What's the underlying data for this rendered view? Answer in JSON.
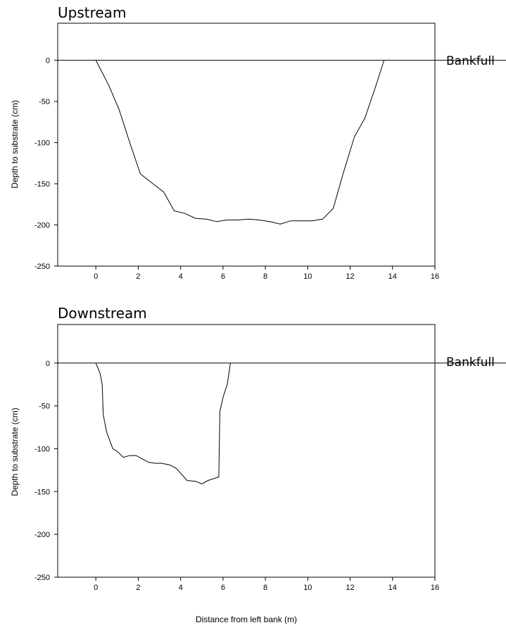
{
  "chart_data": [
    {
      "type": "line",
      "title": "Upstream",
      "xlabel": "",
      "ylabel": "Depth to substrate (cm)",
      "xlim": [
        -1.8,
        16
      ],
      "ylim": [
        -250,
        45
      ],
      "xticks": [
        "0",
        "2",
        "4",
        "6",
        "8",
        "10",
        "12",
        "14",
        "16"
      ],
      "yticks": [
        "0",
        "-50",
        "-100",
        "-150",
        "-200",
        "-250"
      ],
      "reference_line": {
        "y": 0,
        "label": "Bankfull"
      },
      "x": [
        0,
        0.6,
        1.1,
        1.6,
        2.1,
        2.7,
        3.2,
        3.7,
        4.2,
        4.7,
        5.2,
        5.7,
        6.2,
        6.7,
        7.2,
        7.7,
        8.2,
        8.7,
        9.2,
        9.7,
        10.2,
        10.7,
        11.2,
        11.7,
        12.2,
        12.7,
        13.2,
        13.6
      ],
      "y": [
        0,
        -30,
        -60,
        -100,
        -138,
        -150,
        -160,
        -183,
        -186,
        -192,
        -193,
        -196,
        -194,
        -194,
        -193,
        -194,
        -196,
        -199,
        -195,
        -195,
        -195,
        -193,
        -180,
        -135,
        -93,
        -70,
        -32,
        0
      ]
    },
    {
      "type": "line",
      "title": "Downstream",
      "xlabel": "Distance from left bank (m)",
      "ylabel": "Depth to substrate (cm)",
      "xlim": [
        -1.8,
        16
      ],
      "ylim": [
        -250,
        45
      ],
      "xticks": [
        "0",
        "2",
        "4",
        "6",
        "8",
        "10",
        "12",
        "14",
        "16"
      ],
      "yticks": [
        "0",
        "-50",
        "-100",
        "-150",
        "-200",
        "-250"
      ],
      "reference_line": {
        "y": 0,
        "label": "Bankfull"
      },
      "x": [
        0,
        0.2,
        0.3,
        0.35,
        0.5,
        0.8,
        1.0,
        1.3,
        1.6,
        1.9,
        2.2,
        2.5,
        2.8,
        3.1,
        3.5,
        3.8,
        4.3,
        4.7,
        5.0,
        5.3,
        5.8,
        5.85,
        6.0,
        6.2,
        6.35
      ],
      "y": [
        0,
        -12,
        -25,
        -60,
        -80,
        -100,
        -103,
        -110,
        -108,
        -108,
        -112,
        -116,
        -117,
        -117,
        -119,
        -123,
        -137,
        -138,
        -141,
        -137,
        -133,
        -57,
        -40,
        -25,
        0
      ]
    }
  ]
}
